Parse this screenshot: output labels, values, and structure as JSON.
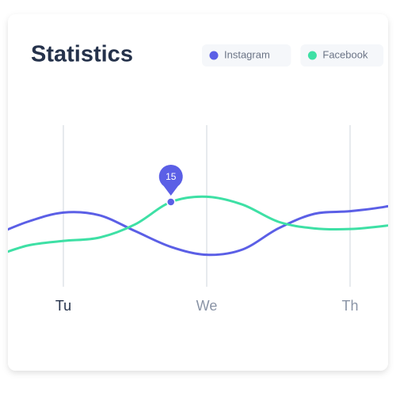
{
  "chart_data": {
    "type": "line",
    "title": "Statistics",
    "categories": [
      null,
      null,
      "Tu",
      null,
      null,
      null,
      "We",
      null,
      null,
      null,
      "Th",
      null,
      null
    ],
    "series": [
      {
        "name": "Instagram",
        "color": "#5b5fe6",
        "values": [
          9.8,
          12,
          13.4,
          13,
          10.6,
          8.2,
          7,
          7.8,
          11,
          13.2,
          13.6,
          14.3,
          15.6
        ]
      },
      {
        "name": "Facebook",
        "color": "#3ee0a5",
        "values": [
          6.6,
          8.4,
          9.1,
          9.6,
          11.6,
          15,
          15.8,
          14.6,
          12,
          11,
          10.9,
          11.4,
          12.2
        ]
      }
    ],
    "ylim": [
      0,
      30
    ],
    "grid": true,
    "callout": {
      "series": 1,
      "index": 5
    }
  }
}
